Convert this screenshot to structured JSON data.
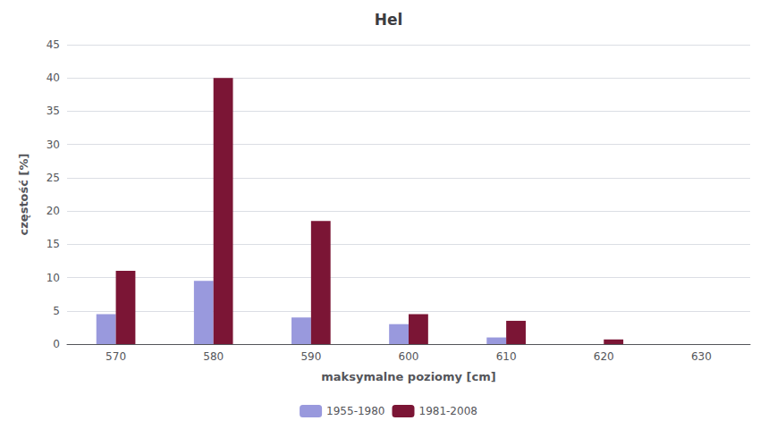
{
  "chart_data": {
    "type": "bar",
    "title": "Hel",
    "xlabel": "maksymalne poziomy [cm]",
    "ylabel": "częstość [%]",
    "categories": [
      570,
      580,
      590,
      600,
      610,
      620,
      630
    ],
    "series": [
      {
        "name": "1955-1980",
        "color": "#9999DD",
        "values": [
          4.5,
          9.5,
          4.0,
          3.0,
          1.0,
          0.0,
          0.0
        ]
      },
      {
        "name": "1981-2008",
        "color": "#7B1535",
        "values": [
          11.0,
          40.0,
          18.5,
          4.5,
          3.5,
          0.7,
          0.0
        ]
      }
    ],
    "ylim": [
      0,
      45
    ],
    "yticks": [
      0,
      5,
      10,
      15,
      20,
      25,
      30,
      35,
      40,
      45
    ],
    "grid": true,
    "legend": "bottom"
  }
}
